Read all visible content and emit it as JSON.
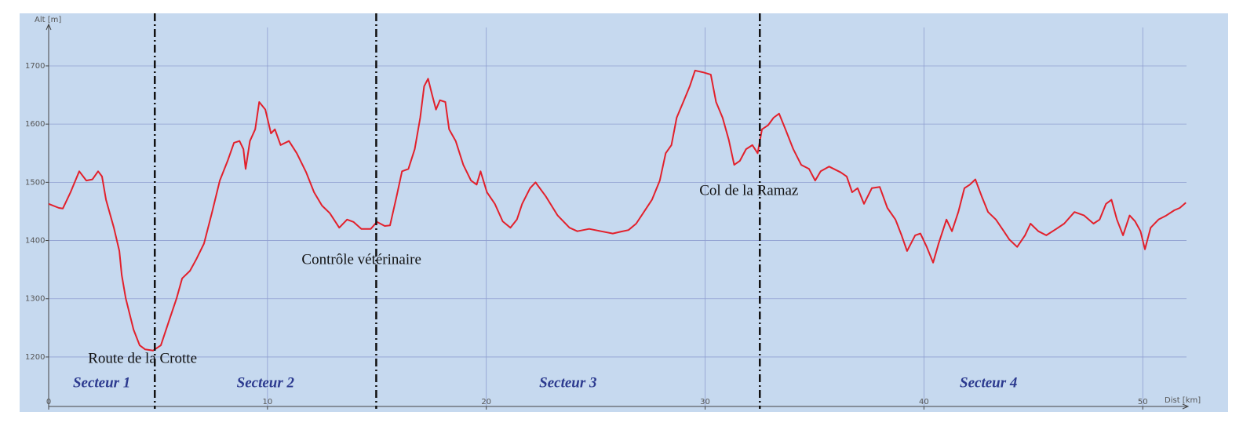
{
  "chart_data": {
    "type": "line",
    "x_label": "Dist [km]",
    "y_label": "Alt [m]",
    "color": "#e2202b",
    "x": [
      0,
      0.47,
      0.65,
      1.0,
      1.4,
      1.72,
      2.0,
      2.26,
      2.44,
      2.62,
      2.98,
      3.23,
      3.34,
      3.52,
      3.88,
      4.16,
      4.41,
      4.77,
      5.13,
      5.49,
      5.85,
      6.1,
      6.46,
      6.75,
      7.1,
      7.47,
      7.82,
      8.18,
      8.47,
      8.72,
      8.9,
      9.0,
      9.2,
      9.44,
      9.62,
      9.9,
      10.16,
      10.34,
      10.6,
      10.98,
      11.34,
      11.77,
      12.13,
      12.49,
      12.85,
      13.28,
      13.64,
      13.93,
      14.29,
      14.72,
      15.0,
      15.36,
      15.6,
      15.9,
      16.15,
      16.44,
      16.73,
      16.98,
      17.16,
      17.34,
      17.52,
      17.7,
      17.88,
      18.13,
      18.3,
      18.6,
      18.95,
      19.3,
      19.56,
      19.74,
      20.03,
      20.39,
      20.75,
      21.1,
      21.4,
      21.64,
      22.0,
      22.25,
      22.72,
      23.26,
      23.8,
      24.16,
      24.7,
      25.24,
      25.78,
      26.13,
      26.5,
      26.85,
      27.2,
      27.57,
      27.93,
      28.2,
      28.46,
      28.7,
      29.0,
      29.3,
      29.54,
      29.9,
      30.26,
      30.5,
      30.8,
      31.08,
      31.33,
      31.59,
      31.87,
      32.16,
      32.4,
      32.6,
      32.88,
      33.13,
      33.38,
      33.67,
      34.03,
      34.39,
      34.75,
      35.03,
      35.28,
      35.67,
      36.2,
      36.47,
      36.72,
      36.97,
      37.26,
      37.62,
      37.98,
      38.33,
      38.7,
      38.98,
      39.23,
      39.6,
      39.84,
      40.13,
      40.42,
      40.67,
      41.03,
      41.28,
      41.57,
      41.85,
      42.1,
      42.35,
      42.64,
      42.93,
      43.29,
      43.65,
      43.9,
      44.26,
      44.62,
      44.87,
      45.23,
      45.59,
      46.05,
      46.41,
      46.88,
      47.32,
      47.75,
      48.03,
      48.32,
      48.57,
      48.82,
      49.1,
      49.4,
      49.65,
      49.9,
      50.1,
      50.36,
      50.72,
      51.08,
      51.44,
      51.69,
      51.97
    ],
    "values": [
      1463,
      1456,
      1455,
      1483,
      1519,
      1503,
      1505,
      1519,
      1510,
      1470,
      1422,
      1382,
      1341,
      1301,
      1247,
      1220,
      1213,
      1211,
      1220,
      1261,
      1301,
      1335,
      1348,
      1368,
      1395,
      1449,
      1503,
      1537,
      1568,
      1571,
      1557,
      1523,
      1571,
      1591,
      1638,
      1625,
      1584,
      1591,
      1564,
      1571,
      1550,
      1517,
      1483,
      1460,
      1447,
      1422,
      1436,
      1432,
      1420,
      1420,
      1432,
      1425,
      1426,
      1476,
      1519,
      1523,
      1557,
      1611,
      1665,
      1678,
      1651,
      1625,
      1641,
      1638,
      1591,
      1571,
      1530,
      1503,
      1496,
      1519,
      1483,
      1463,
      1433,
      1422,
      1436,
      1463,
      1490,
      1500,
      1476,
      1443,
      1422,
      1416,
      1420,
      1416,
      1412,
      1415,
      1418,
      1429,
      1449,
      1470,
      1503,
      1550,
      1564,
      1611,
      1638,
      1665,
      1692,
      1689,
      1685,
      1638,
      1611,
      1573,
      1530,
      1537,
      1557,
      1564,
      1550,
      1591,
      1598,
      1611,
      1618,
      1591,
      1557,
      1530,
      1523,
      1503,
      1519,
      1527,
      1517,
      1510,
      1483,
      1490,
      1463,
      1490,
      1492,
      1456,
      1436,
      1409,
      1382,
      1409,
      1412,
      1389,
      1362,
      1395,
      1436,
      1416,
      1449,
      1490,
      1496,
      1505,
      1476,
      1449,
      1436,
      1416,
      1402,
      1389,
      1409,
      1429,
      1416,
      1409,
      1420,
      1429,
      1449,
      1443,
      1429,
      1436,
      1463,
      1470,
      1436,
      1409,
      1443,
      1433,
      1416,
      1385,
      1422,
      1436,
      1443,
      1452,
      1456,
      1465
    ],
    "xlim": [
      0,
      52
    ],
    "ylim": [
      1115,
      1766
    ],
    "xticks": [
      0,
      10,
      20,
      30,
      40,
      50
    ],
    "yticks": [
      1200,
      1300,
      1400,
      1500,
      1600,
      1700
    ],
    "grid": true,
    "sector_boundaries": [
      {
        "x": 4.85,
        "label": "Route de la Crotte"
      },
      {
        "x": 14.97,
        "label": "Contrôle vétérinaire"
      },
      {
        "x": 32.5,
        "label": "Col de la Ramaz"
      }
    ],
    "sectors": [
      "Secteur 1",
      "Secteur 2",
      "Secteur 3",
      "Secteur 4"
    ]
  }
}
